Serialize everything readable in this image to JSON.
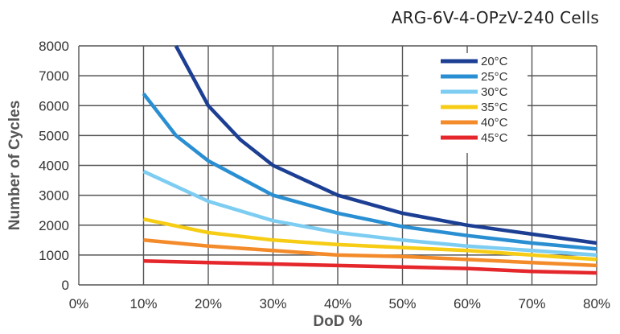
{
  "chart_data": {
    "type": "line",
    "title": "ARG-6V-4-OPzV-240 Cells",
    "xlabel": "DoD %",
    "ylabel": "Number of Cycles",
    "xlim": [
      0,
      80
    ],
    "ylim": [
      0,
      8000
    ],
    "xticks": [
      "0%",
      "10%",
      "20%",
      "30%",
      "40%",
      "50%",
      "60%",
      "70%",
      "80%"
    ],
    "yticks": [
      "0",
      "1000",
      "2000",
      "3000",
      "4000",
      "5000",
      "6000",
      "7000",
      "8000"
    ],
    "grid": true,
    "legend_position": "top-right",
    "series": [
      {
        "name": "20°C",
        "color": "#1c3f94",
        "x": [
          15,
          20,
          25,
          30,
          40,
          50,
          60,
          70,
          80
        ],
        "y": [
          8000,
          6000,
          4850,
          4000,
          3000,
          2400,
          2000,
          1700,
          1400
        ]
      },
      {
        "name": "25°C",
        "color": "#2a8fd2",
        "x": [
          10,
          15,
          20,
          30,
          40,
          50,
          60,
          70,
          80
        ],
        "y": [
          6400,
          5000,
          4150,
          3000,
          2400,
          1950,
          1650,
          1400,
          1200
        ]
      },
      {
        "name": "30°C",
        "color": "#7dcdf2",
        "x": [
          10,
          20,
          30,
          40,
          50,
          60,
          70,
          80
        ],
        "y": [
          3800,
          2800,
          2150,
          1750,
          1500,
          1300,
          1150,
          1000
        ]
      },
      {
        "name": "35°C",
        "color": "#f6cd14",
        "x": [
          10,
          20,
          30,
          40,
          50,
          60,
          70,
          80
        ],
        "y": [
          2200,
          1750,
          1500,
          1350,
          1250,
          1150,
          1000,
          850
        ]
      },
      {
        "name": "40°C",
        "color": "#f38b2b",
        "x": [
          10,
          20,
          30,
          40,
          50,
          60,
          70,
          80
        ],
        "y": [
          1500,
          1300,
          1150,
          1000,
          950,
          850,
          750,
          650
        ]
      },
      {
        "name": "45°C",
        "color": "#e5262b",
        "x": [
          10,
          20,
          30,
          40,
          50,
          60,
          70,
          80
        ],
        "y": [
          800,
          750,
          700,
          650,
          600,
          550,
          450,
          400
        ]
      }
    ]
  }
}
